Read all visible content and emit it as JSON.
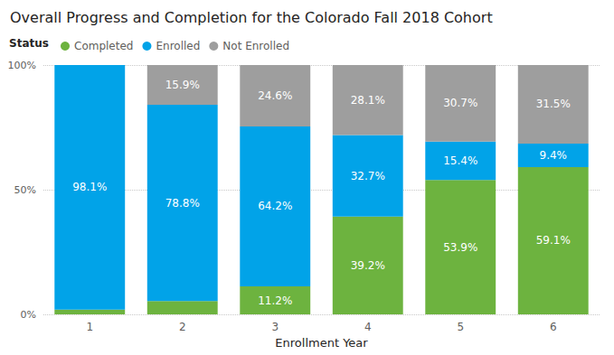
{
  "chart_data": {
    "type": "bar",
    "title": "Overall Progress and Completion for the Colorado Fall 2018 Cohort",
    "legend_title": "Status",
    "xlabel": "Enrollment Year",
    "categories": [
      "1",
      "2",
      "3",
      "4",
      "5",
      "6"
    ],
    "series": [
      {
        "name": "Completed",
        "color": "#6db33f",
        "values": [
          1.9,
          5.3,
          11.2,
          39.2,
          53.9,
          59.1
        ],
        "value_labels": [
          null,
          null,
          "11.2%",
          "39.2%",
          "53.9%",
          "59.1%"
        ]
      },
      {
        "name": "Enrolled",
        "color": "#01a3e8",
        "values": [
          98.1,
          78.8,
          64.2,
          32.7,
          15.4,
          9.4
        ],
        "value_labels": [
          "98.1%",
          "78.8%",
          "64.2%",
          "32.7%",
          "15.4%",
          "9.4%"
        ]
      },
      {
        "name": "Not Enrolled",
        "color": "#9e9e9e",
        "values": [
          0,
          15.9,
          24.6,
          28.1,
          30.7,
          31.5
        ],
        "value_labels": [
          null,
          "15.9%",
          "24.6%",
          "28.1%",
          "30.7%",
          "31.5%"
        ]
      }
    ],
    "ylim": [
      0,
      100
    ],
    "yticks": [
      {
        "value": 0,
        "label": "0%"
      },
      {
        "value": 50,
        "label": "50%"
      },
      {
        "value": 100,
        "label": "100%"
      }
    ],
    "stacked": true,
    "data_labels": true,
    "grid": true,
    "legend": "top-left"
  }
}
